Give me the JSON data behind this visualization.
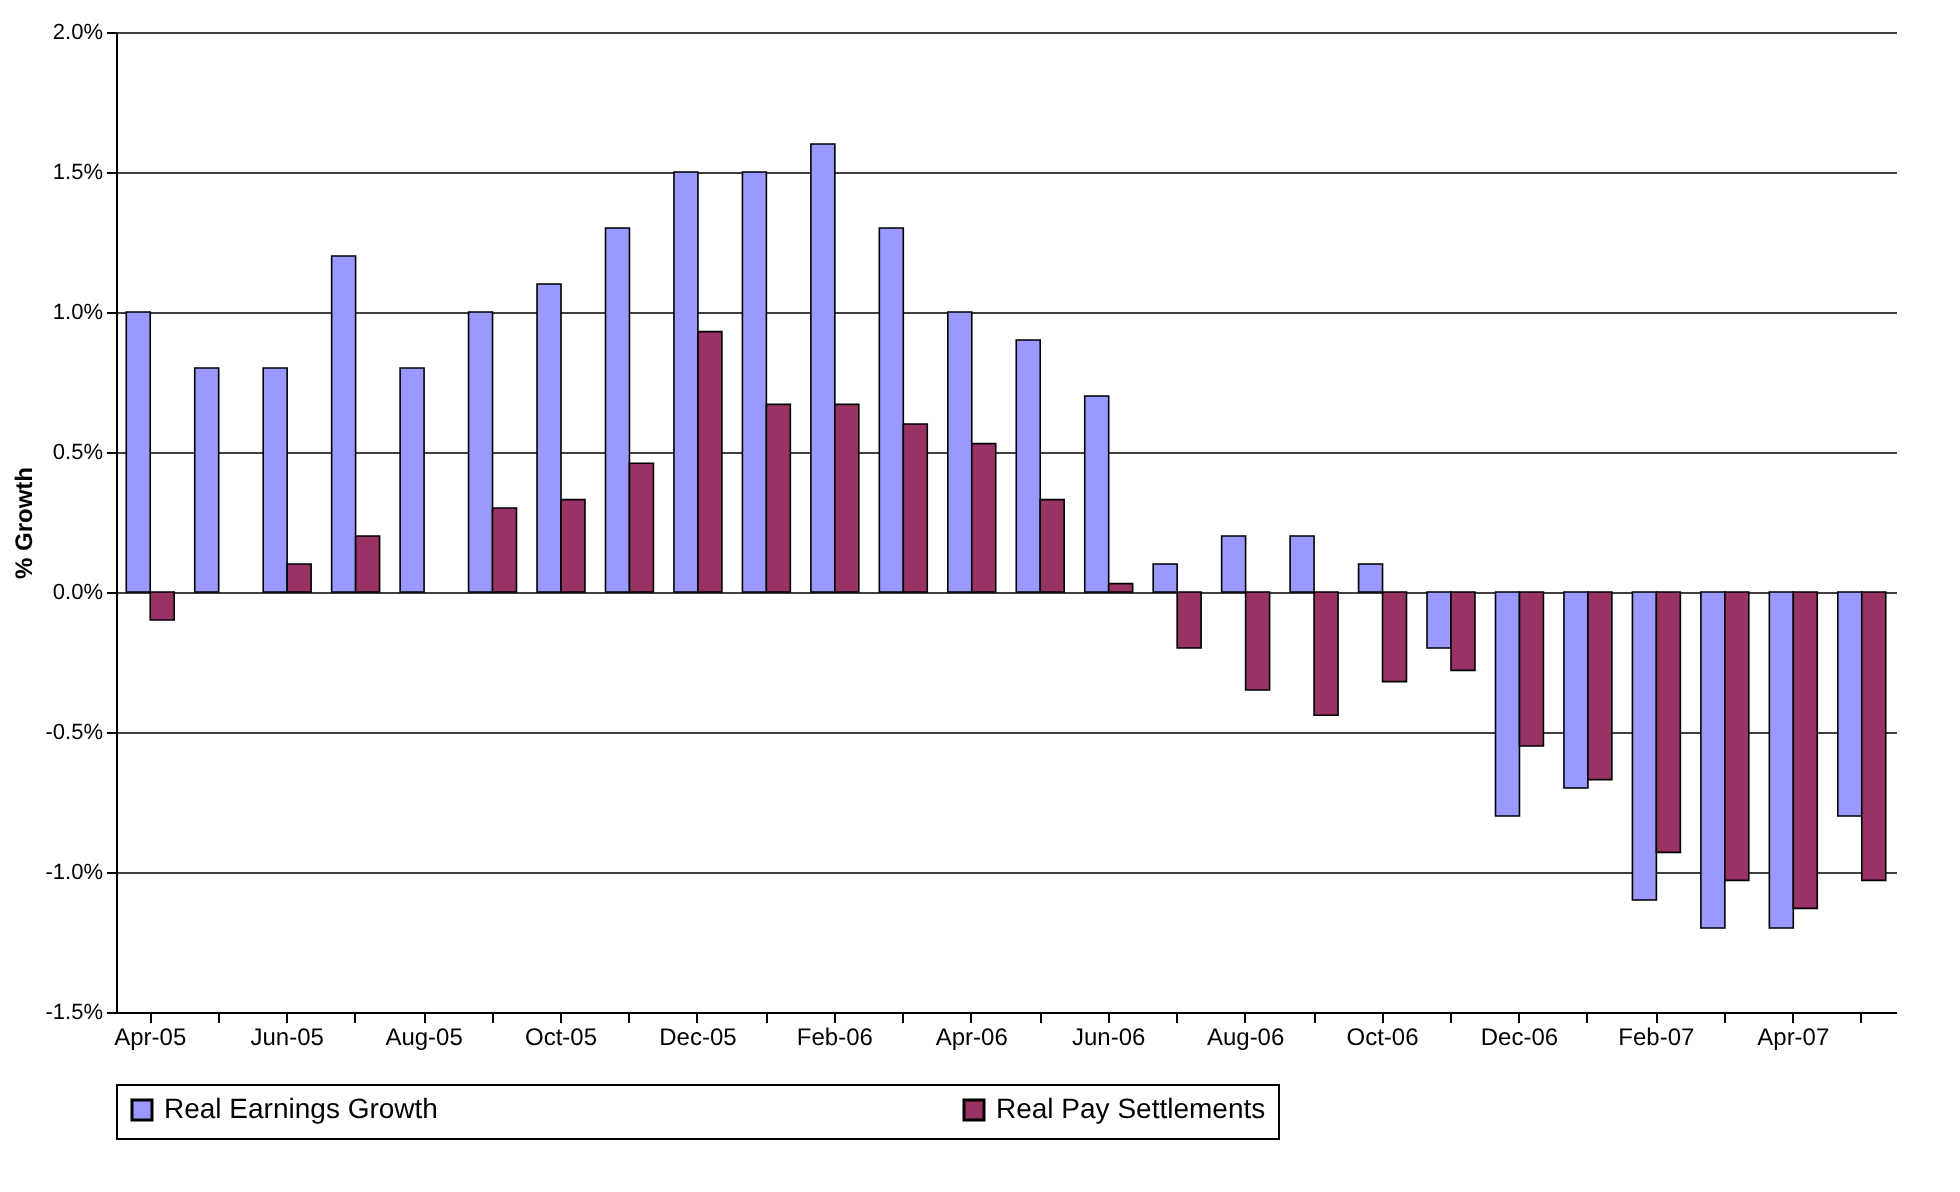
{
  "chart_data": {
    "type": "bar",
    "ylabel": "% Growth",
    "categories": [
      "Apr-05",
      null,
      "Jun-05",
      null,
      "Aug-05",
      null,
      "Oct-05",
      null,
      "Dec-05",
      null,
      "Feb-06",
      null,
      "Apr-06",
      null,
      "Jun-06",
      null,
      "Aug-06",
      null,
      "Oct-06",
      null,
      "Dec-06",
      null,
      "Feb-07",
      null,
      "Apr-07",
      null
    ],
    "series": [
      {
        "name": "Real Earnings Growth",
        "color": "#9999ff",
        "values": [
          1.0,
          0.8,
          0.8,
          1.2,
          0.8,
          1.0,
          1.1,
          1.3,
          1.5,
          1.5,
          1.6,
          1.3,
          1.0,
          0.9,
          0.7,
          0.1,
          0.2,
          0.2,
          0.1,
          -0.2,
          -0.8,
          -0.7,
          -1.1,
          -1.2,
          -1.2,
          -0.8
        ]
      },
      {
        "name": "Real Pay Settlements",
        "color": "#993366",
        "values": [
          -0.1,
          null,
          0.1,
          0.2,
          null,
          0.3,
          0.33,
          0.46,
          0.93,
          0.67,
          0.67,
          0.6,
          0.53,
          0.33,
          0.03,
          -0.2,
          -0.35,
          -0.44,
          -0.32,
          -0.28,
          -0.55,
          -0.67,
          -0.93,
          -1.03,
          -1.13,
          -1.03
        ]
      }
    ],
    "ylim": [
      -1.5,
      2.0
    ],
    "yticks": [
      {
        "value": -1.5,
        "label": "-1.5%"
      },
      {
        "value": -1.0,
        "label": "-1.0%"
      },
      {
        "value": -0.5,
        "label": "-0.5%"
      },
      {
        "value": 0,
        "label": "0.0%"
      },
      {
        "value": 0.5,
        "label": "0.5%"
      },
      {
        "value": 1.0,
        "label": "1.0%"
      },
      {
        "value": 1.5,
        "label": "1.5%"
      },
      {
        "value": 2.0,
        "label": "2.0%"
      }
    ],
    "grid": "y",
    "legend": "bottom"
  }
}
